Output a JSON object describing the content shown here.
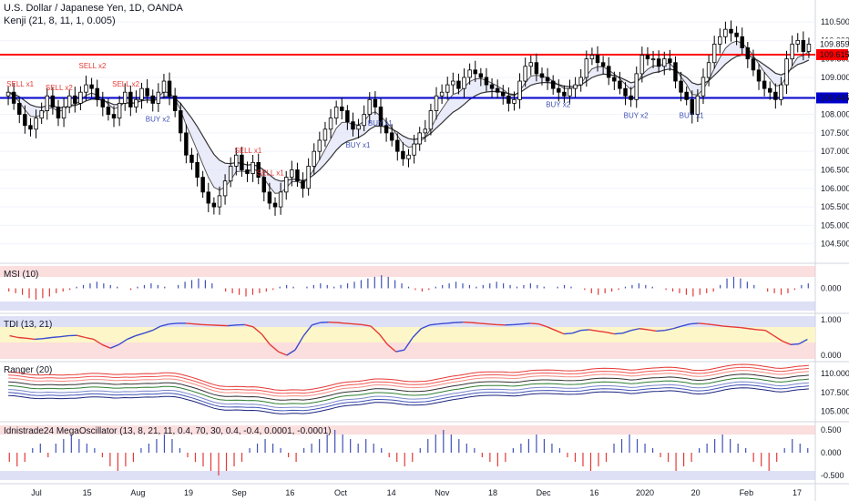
{
  "header": {
    "symbol_line": "U.S. Dollar / Japanese Yen, 1D, OANDA",
    "indicator_line": "Kenji (21, 8, 11, 1, 0.005)"
  },
  "panels": {
    "msi_label": "MSI (10)",
    "tdi_label": "TDI (13, 21)",
    "ranger_label": "Ranger (20)",
    "mega_label": "Idnistrade24 MegaOscillator (13, 8, 21, 11, 0.4, 70, 30, 0.4, -0.4, 0.0001, -0.0001)"
  },
  "price_badges": {
    "last": "109.859",
    "time": "12:12:56",
    "red_line": "109.615",
    "blue_line": "108.446"
  },
  "colors": {
    "bull": "#ffffff",
    "bear": "#000000",
    "resistance": "#ff0000",
    "support": "#0000cc",
    "sell_signal": "#e53935",
    "buy_signal": "#3f51b5",
    "red_zone": "#f8c8c8",
    "blue_zone": "#c8ccf0",
    "yellow_zone": "#fdf6c8"
  },
  "signals": {
    "sell": [
      "SELL x1",
      "SELL x2",
      "SELL x2",
      "SELL x2",
      "SELL x1",
      "SELL x1"
    ],
    "buy": [
      "BUY x2",
      "BUY x1",
      "BUY x1",
      "BUY x2",
      "BUY x2",
      "BUY x1"
    ]
  },
  "chart_data": [
    {
      "type": "candlestick",
      "ylim": [
        104.0,
        110.6
      ],
      "y_ticks": [
        "104.500",
        "105.000",
        "105.500",
        "106.000",
        "106.500",
        "107.000",
        "107.500",
        "108.000",
        "108.500",
        "109.000",
        "109.500",
        "110.000",
        "110.500"
      ],
      "y_tick_values": [
        104.5,
        105.0,
        105.5,
        106.0,
        106.5,
        107.0,
        107.5,
        108.0,
        108.5,
        109.0,
        109.5,
        110.0,
        110.5
      ],
      "x_ticks": [
        "Jul",
        "15",
        "Aug",
        "19",
        "Sep",
        "16",
        "Oct",
        "14",
        "Nov",
        "18",
        "Dec",
        "16",
        "2020",
        "20",
        "Feb",
        "17"
      ],
      "hlines": [
        109.615,
        108.446
      ],
      "close": [
        108.6,
        108.3,
        108.0,
        107.7,
        107.6,
        107.9,
        108.1,
        108.5,
        108.2,
        107.9,
        108.2,
        108.5,
        108.3,
        108.6,
        108.8,
        108.7,
        108.4,
        108.2,
        108.0,
        107.9,
        108.3,
        108.6,
        108.2,
        108.4,
        108.7,
        108.5,
        108.3,
        108.6,
        108.9,
        108.5,
        108.1,
        107.5,
        106.9,
        106.7,
        106.3,
        105.9,
        105.6,
        105.5,
        105.8,
        106.2,
        106.6,
        106.9,
        106.5,
        106.4,
        106.7,
        106.3,
        105.9,
        105.6,
        105.5,
        105.9,
        106.3,
        106.5,
        106.2,
        106.0,
        106.6,
        107.0,
        107.3,
        107.6,
        107.9,
        108.2,
        108.1,
        107.8,
        107.6,
        107.7,
        108.0,
        108.4,
        108.2,
        107.7,
        107.5,
        107.3,
        107.0,
        106.8,
        106.9,
        107.2,
        107.5,
        107.6,
        108.1,
        108.5,
        108.6,
        108.8,
        108.9,
        108.7,
        109.0,
        109.2,
        109.1,
        109.0,
        108.8,
        108.7,
        108.6,
        108.5,
        108.3,
        108.4,
        108.9,
        109.3,
        109.4,
        109.1,
        109.0,
        108.9,
        108.7,
        108.6,
        108.5,
        108.7,
        108.8,
        109.0,
        109.5,
        109.6,
        109.4,
        109.3,
        109.0,
        108.9,
        108.7,
        108.5,
        108.4,
        109.1,
        109.6,
        109.5,
        109.5,
        109.3,
        109.5,
        109.4,
        108.9,
        108.6,
        108.4,
        108.0,
        108.5,
        109.0,
        109.4,
        109.9,
        110.1,
        110.3,
        110.2,
        110.1,
        109.8,
        109.5,
        109.2,
        108.9,
        108.7,
        108.6,
        108.4,
        108.8,
        109.5,
        109.9,
        110.0,
        109.7,
        109.9
      ]
    },
    {
      "type": "bar",
      "title": "MSI (10)",
      "y_ticks": [
        "0.000"
      ],
      "values": [
        -0.2,
        -0.3,
        -0.4,
        -0.6,
        -0.7,
        -0.6,
        -0.5,
        -0.3,
        -0.2,
        -0.1,
        0.1,
        0.2,
        0.3,
        0.4,
        0.3,
        0.2,
        0.1,
        0.0,
        -0.1,
        0.1,
        0.2,
        0.3,
        0.2,
        0.1,
        0.0,
        0.2,
        0.4,
        0.5,
        0.6,
        0.5,
        0.3,
        0.0,
        -0.2,
        -0.3,
        -0.4,
        -0.5,
        -0.4,
        -0.3,
        -0.2,
        -0.1,
        0.1,
        0.2,
        0.1,
        0.0,
        0.1,
        0.2,
        0.3,
        0.2,
        0.1,
        0.2,
        0.3,
        0.4,
        0.5,
        0.6,
        0.7,
        0.8,
        0.7,
        0.5,
        0.3,
        0.1,
        -0.1,
        -0.2,
        -0.1,
        0.1,
        0.2,
        0.3,
        0.4,
        0.3,
        0.2,
        0.1,
        0.2,
        0.3,
        0.4,
        0.3,
        0.2,
        0.1,
        0.2,
        0.3,
        0.2,
        0.1,
        0.0,
        0.1,
        0.2,
        0.1,
        0.0,
        -0.1,
        -0.3,
        -0.4,
        -0.3,
        -0.2,
        -0.1,
        0.1,
        0.2,
        0.3,
        0.2,
        0.1,
        0.0,
        -0.1,
        -0.2,
        -0.3,
        -0.4,
        -0.5,
        -0.4,
        -0.3,
        -0.2,
        0.2,
        0.6,
        0.7,
        0.6,
        0.4,
        0.2,
        0.0,
        -0.2,
        -0.3,
        -0.4,
        -0.3,
        -0.1,
        0.2,
        0.3
      ]
    },
    {
      "type": "line",
      "title": "TDI (13, 21)",
      "y_ticks": [
        "1.000",
        "0.000"
      ],
      "values": [
        0.55,
        0.5,
        0.48,
        0.45,
        0.47,
        0.5,
        0.52,
        0.55,
        0.56,
        0.5,
        0.45,
        0.3,
        0.2,
        0.3,
        0.45,
        0.55,
        0.62,
        0.7,
        0.82,
        0.88,
        0.9,
        0.9,
        0.88,
        0.86,
        0.85,
        0.84,
        0.83,
        0.85,
        0.86,
        0.8,
        0.6,
        0.3,
        0.1,
        0.0,
        0.15,
        0.55,
        0.85,
        0.92,
        0.93,
        0.92,
        0.9,
        0.88,
        0.86,
        0.82,
        0.6,
        0.3,
        0.1,
        0.15,
        0.5,
        0.75,
        0.85,
        0.88,
        0.9,
        0.92,
        0.93,
        0.92,
        0.9,
        0.88,
        0.86,
        0.85,
        0.86,
        0.88,
        0.9,
        0.88,
        0.8,
        0.7,
        0.6,
        0.62,
        0.7,
        0.72,
        0.68,
        0.65,
        0.6,
        0.62,
        0.7,
        0.75,
        0.72,
        0.68,
        0.7,
        0.75,
        0.82,
        0.88,
        0.9,
        0.88,
        0.85,
        0.82,
        0.8,
        0.78,
        0.75,
        0.72,
        0.7,
        0.55,
        0.4,
        0.3,
        0.32,
        0.45
      ]
    },
    {
      "type": "line",
      "title": "Ranger (20)",
      "y_ticks": [
        "110.000",
        "107.500",
        "105.000"
      ]
    },
    {
      "type": "bar",
      "title": "Idnistrade24 MegaOscillator (13, 8, 21, 11, 0.4, 70, 30, 0.4, -0.4, 0.0001, -0.0001)",
      "y_ticks": [
        "0.500",
        "0.000",
        "-0.500"
      ],
      "values": [
        -0.2,
        -0.3,
        -0.2,
        0.1,
        0.2,
        -0.1,
        0.2,
        0.3,
        0.4,
        0.3,
        0.2,
        0.1,
        -0.1,
        -0.3,
        -0.4,
        -0.3,
        -0.2,
        0.1,
        0.2,
        0.3,
        0.4,
        0.3,
        0.1,
        -0.1,
        -0.2,
        -0.3,
        -0.4,
        -0.5,
        -0.4,
        -0.3,
        -0.2,
        0.1,
        0.2,
        0.3,
        0.2,
        0.1,
        -0.1,
        -0.2,
        0.1,
        0.2,
        0.3,
        0.4,
        0.5,
        0.4,
        0.3,
        0.2,
        0.3,
        0.2,
        0.1,
        -0.1,
        -0.2,
        -0.3,
        -0.2,
        0.1,
        0.3,
        0.4,
        0.5,
        0.4,
        0.3,
        0.2,
        0.1,
        -0.1,
        -0.2,
        -0.3,
        -0.2,
        0.1,
        0.2,
        0.3,
        0.4,
        0.3,
        0.2,
        0.1,
        -0.1,
        -0.2,
        -0.3,
        -0.4,
        -0.3,
        -0.2,
        0.2,
        0.3,
        0.4,
        0.3,
        0.2,
        0.1,
        -0.1,
        -0.2,
        -0.4,
        -0.3,
        -0.2,
        0.1,
        0.2,
        0.3,
        0.4,
        0.3,
        0.2,
        0.1,
        -0.2,
        -0.3,
        -0.4,
        -0.2,
        0.1,
        0.3,
        0.2,
        0.1
      ]
    }
  ]
}
